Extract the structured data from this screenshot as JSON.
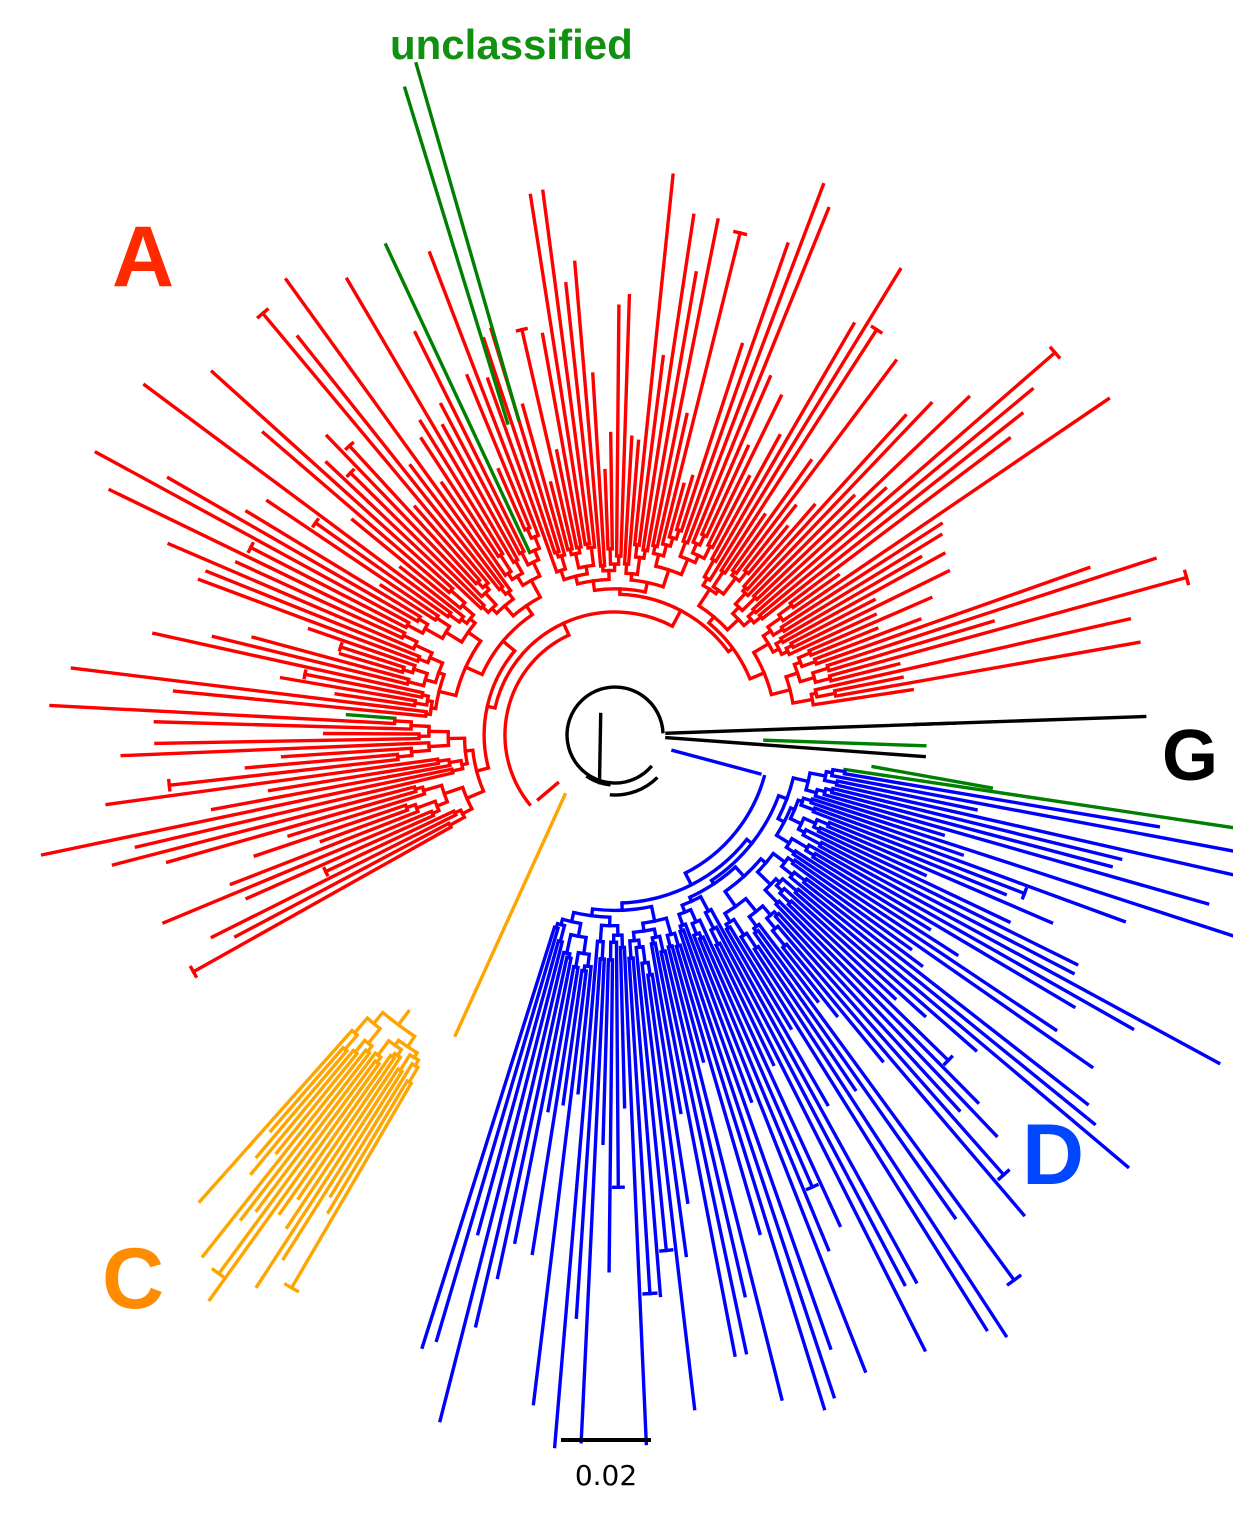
{
  "tree": {
    "clades": [
      {
        "key": "A",
        "label": "A",
        "color": "#ff2a00",
        "branch_color": "#ff0000"
      },
      {
        "key": "C",
        "label": "C",
        "color": "#ff8c00",
        "branch_color": "#ffa500"
      },
      {
        "key": "D",
        "label": "D",
        "color": "#0047ff",
        "branch_color": "#0000ff"
      },
      {
        "key": "G",
        "label": "G",
        "color": "#000000",
        "branch_color": "#000000"
      },
      {
        "key": "U",
        "label": "unclassified",
        "color": "#119011",
        "branch_color": "#008000"
      }
    ],
    "scale_bar": {
      "label": "0.02"
    }
  }
}
